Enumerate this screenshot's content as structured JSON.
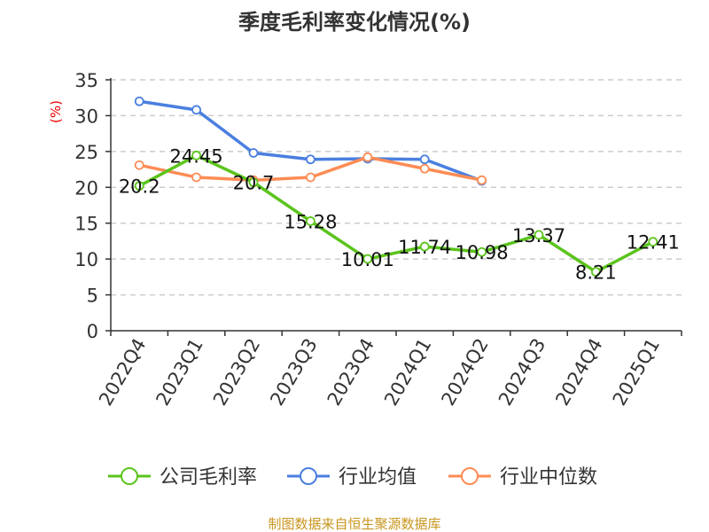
{
  "chart_data": {
    "type": "line",
    "title": "季度毛利率变化情况(%)",
    "ylabel": "(%)",
    "xlabel": "",
    "ylim": [
      0,
      35
    ],
    "yticks": [
      0,
      5,
      10,
      15,
      20,
      25,
      30,
      35
    ],
    "grid": true,
    "legend_position": "bottom",
    "categories": [
      "2022Q4",
      "2023Q1",
      "2023Q2",
      "2023Q3",
      "2023Q4",
      "2024Q1",
      "2024Q2",
      "2024Q3",
      "2024Q4",
      "2025Q1"
    ],
    "series": [
      {
        "name": "公司毛利率",
        "color": "#5bc41c",
        "labeled": true,
        "values": [
          20.2,
          24.45,
          20.7,
          15.28,
          10.01,
          11.74,
          10.98,
          13.37,
          8.21,
          12.41
        ]
      },
      {
        "name": "行业均值",
        "color": "#4a7fe0",
        "labeled": false,
        "values": [
          32.0,
          30.8,
          24.8,
          23.9,
          24.0,
          23.9,
          20.9,
          null,
          null,
          null
        ]
      },
      {
        "name": "行业中位数",
        "color": "#fd8c55",
        "labeled": false,
        "values": [
          23.1,
          21.4,
          21.0,
          21.4,
          24.2,
          22.6,
          21.0,
          null,
          null,
          null
        ]
      }
    ]
  },
  "footer": "制图数据来自恒生聚源数据库"
}
